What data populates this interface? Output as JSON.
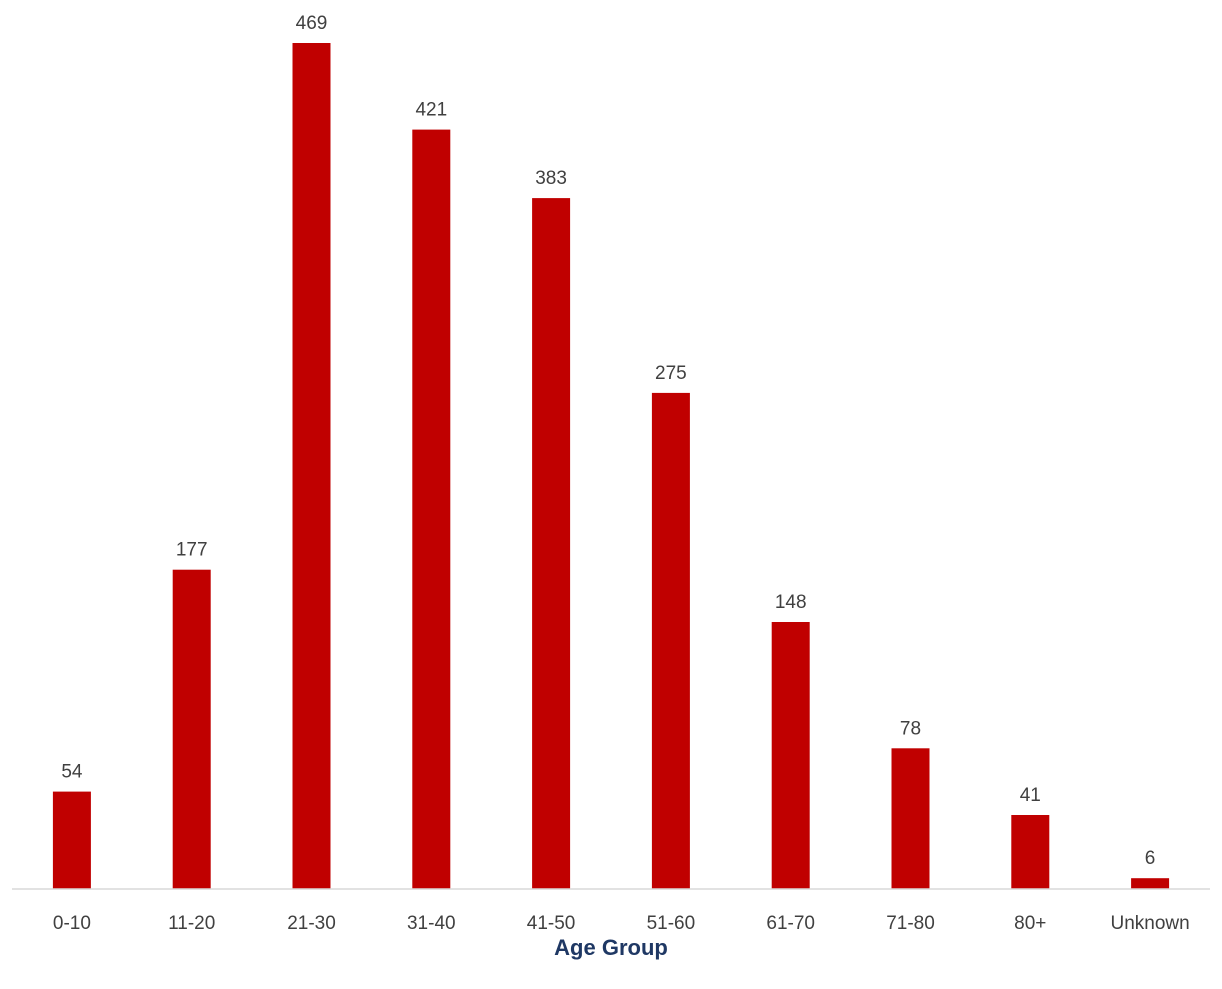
{
  "chart_data": {
    "type": "bar",
    "title": "",
    "xlabel": "Age Group",
    "ylabel": "",
    "categories": [
      "0-10",
      "11-20",
      "21-30",
      "31-40",
      "41-50",
      "51-60",
      "61-70",
      "71-80",
      "80+",
      "Unknown"
    ],
    "values": [
      54,
      177,
      469,
      421,
      383,
      275,
      148,
      78,
      41,
      6
    ],
    "ylim": [
      0,
      469
    ],
    "grid": false,
    "legend": "none",
    "bar_color": "#c00000",
    "axis_line_color": "#d9d9d9",
    "label_color": "#404040",
    "xlabel_color": "#1f3864"
  }
}
